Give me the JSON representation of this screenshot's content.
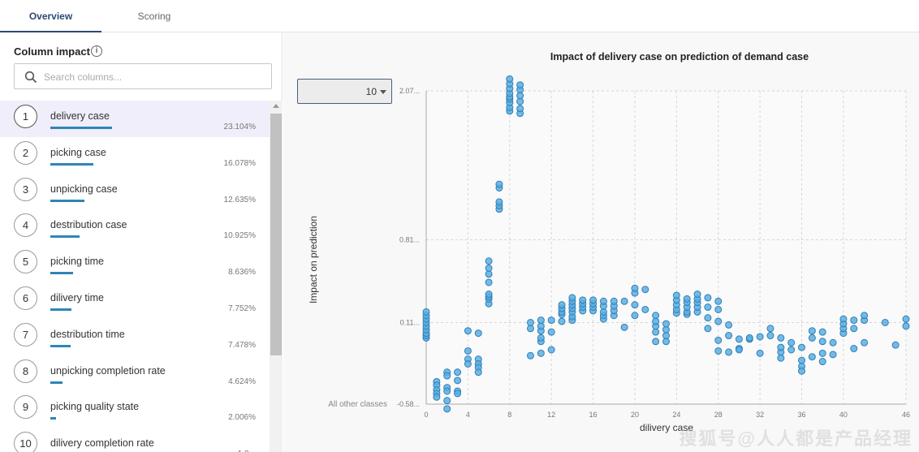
{
  "tabs": [
    {
      "label": "Overview",
      "active": true
    },
    {
      "label": "Scoring",
      "active": false
    }
  ],
  "left": {
    "title": "Column impact",
    "info_icon": "i",
    "search_placeholder": "Search columns..."
  },
  "columns": [
    {
      "rank": "1",
      "name": "delivery case",
      "pct": "23.104%",
      "value": 23.104
    },
    {
      "rank": "2",
      "name": "picking case",
      "pct": "16.078%",
      "value": 16.078
    },
    {
      "rank": "3",
      "name": "unpicking case",
      "pct": "12.635%",
      "value": 12.635
    },
    {
      "rank": "4",
      "name": "destribution case",
      "pct": "10.925%",
      "value": 10.925
    },
    {
      "rank": "5",
      "name": "picking time",
      "pct": "8.636%",
      "value": 8.636
    },
    {
      "rank": "6",
      "name": "dilivery time",
      "pct": "7.752%",
      "value": 7.752
    },
    {
      "rank": "7",
      "name": "destribution time",
      "pct": "7.478%",
      "value": 7.478
    },
    {
      "rank": "8",
      "name": "unpicking completion rate",
      "pct": "4.624%",
      "value": 4.624
    },
    {
      "rank": "9",
      "name": "picking quality state",
      "pct": "2.006%",
      "value": 2.006
    },
    {
      "rank": "10",
      "name": "dilivery completion rate",
      "pct": "1.9...",
      "value": 1.9
    }
  ],
  "colors": {
    "accent": "#2e86b5",
    "point": "#5aaee0",
    "point_stroke": "#2f7fb8"
  },
  "dropdown": {
    "value": "10"
  },
  "watermark": "搜狐号@人人都是产品经理",
  "chart_data": {
    "type": "scatter",
    "title": "Impact of delivery case on prediction of demand case",
    "xlabel": "dilivery case",
    "ylabel": "Impact on prediction",
    "other_label": "All other classes",
    "xlim": [
      0,
      46
    ],
    "ylim": [
      -0.58,
      2.07
    ],
    "xticks": [
      0,
      4,
      8,
      12,
      16,
      20,
      24,
      28,
      32,
      36,
      40,
      46
    ],
    "yticks": [
      {
        "value": 2.07,
        "label": "2.07..."
      },
      {
        "value": 0.81,
        "label": "0.81..."
      },
      {
        "value": 0.11,
        "label": "0.11..."
      },
      {
        "value": -0.58,
        "label": "-0.58..."
      }
    ],
    "points": [
      [
        0,
        -0.02
      ],
      [
        0,
        0.0
      ],
      [
        0,
        0.02
      ],
      [
        0,
        0.05
      ],
      [
        0,
        0.08
      ],
      [
        0,
        0.11
      ],
      [
        0,
        0.14
      ],
      [
        0,
        0.17
      ],
      [
        0,
        0.2
      ],
      [
        1,
        -0.39
      ],
      [
        1,
        -0.42
      ],
      [
        1,
        -0.46
      ],
      [
        1,
        -0.49
      ],
      [
        1,
        -0.52
      ],
      [
        2,
        -0.31
      ],
      [
        2,
        -0.34
      ],
      [
        2,
        -0.44
      ],
      [
        2,
        -0.47
      ],
      [
        2,
        -0.55
      ],
      [
        2,
        -0.62
      ],
      [
        3,
        -0.31
      ],
      [
        3,
        -0.38
      ],
      [
        3,
        -0.47
      ],
      [
        3,
        -0.49
      ],
      [
        4,
        -0.13
      ],
      [
        4,
        -0.2
      ],
      [
        4,
        -0.24
      ],
      [
        4,
        0.04
      ],
      [
        5,
        -0.2
      ],
      [
        5,
        -0.24
      ],
      [
        5,
        -0.27
      ],
      [
        5,
        -0.31
      ],
      [
        5,
        0.02
      ],
      [
        6,
        0.27
      ],
      [
        6,
        0.31
      ],
      [
        6,
        0.33
      ],
      [
        6,
        0.35
      ],
      [
        6,
        0.45
      ],
      [
        6,
        0.52
      ],
      [
        6,
        0.57
      ],
      [
        6,
        0.63
      ],
      [
        7,
        1.07
      ],
      [
        7,
        1.1
      ],
      [
        7,
        1.13
      ],
      [
        7,
        1.25
      ],
      [
        7,
        1.28
      ],
      [
        8,
        1.9
      ],
      [
        8,
        1.93
      ],
      [
        8,
        1.97
      ],
      [
        8,
        2.0
      ],
      [
        8,
        2.02
      ],
      [
        8,
        2.05
      ],
      [
        8,
        2.09
      ],
      [
        8,
        2.13
      ],
      [
        8,
        2.17
      ],
      [
        9,
        1.88
      ],
      [
        9,
        1.92
      ],
      [
        9,
        1.98
      ],
      [
        9,
        2.03
      ],
      [
        9,
        2.08
      ],
      [
        9,
        2.12
      ],
      [
        10,
        -0.17
      ],
      [
        10,
        0.06
      ],
      [
        10,
        0.11
      ],
      [
        11,
        -0.15
      ],
      [
        11,
        -0.05
      ],
      [
        11,
        -0.02
      ],
      [
        11,
        0.04
      ],
      [
        11,
        0.08
      ],
      [
        11,
        0.13
      ],
      [
        12,
        0.13
      ],
      [
        12,
        0.03
      ],
      [
        12,
        -0.12
      ],
      [
        13,
        0.12
      ],
      [
        13,
        0.18
      ],
      [
        13,
        0.2
      ],
      [
        13,
        0.23
      ],
      [
        13,
        0.26
      ],
      [
        14,
        0.13
      ],
      [
        14,
        0.16
      ],
      [
        14,
        0.2
      ],
      [
        14,
        0.23
      ],
      [
        14,
        0.26
      ],
      [
        14,
        0.29
      ],
      [
        14,
        0.32
      ],
      [
        15,
        0.21
      ],
      [
        15,
        0.24
      ],
      [
        15,
        0.27
      ],
      [
        15,
        0.3
      ],
      [
        16,
        0.21
      ],
      [
        16,
        0.24
      ],
      [
        16,
        0.27
      ],
      [
        16,
        0.3
      ],
      [
        17,
        0.14
      ],
      [
        17,
        0.17
      ],
      [
        17,
        0.2
      ],
      [
        17,
        0.25
      ],
      [
        17,
        0.29
      ],
      [
        18,
        0.17
      ],
      [
        18,
        0.21
      ],
      [
        18,
        0.25
      ],
      [
        18,
        0.29
      ],
      [
        19,
        0.07
      ],
      [
        19,
        0.29
      ],
      [
        20,
        0.17
      ],
      [
        20,
        0.26
      ],
      [
        20,
        0.36
      ],
      [
        20,
        0.4
      ],
      [
        21,
        0.22
      ],
      [
        21,
        0.39
      ],
      [
        22,
        -0.05
      ],
      [
        22,
        0.03
      ],
      [
        22,
        0.08
      ],
      [
        22,
        0.12
      ],
      [
        22,
        0.17
      ],
      [
        23,
        -0.05
      ],
      [
        23,
        0.0
      ],
      [
        23,
        0.05
      ],
      [
        23,
        0.1
      ],
      [
        24,
        0.19
      ],
      [
        24,
        0.22
      ],
      [
        24,
        0.26
      ],
      [
        24,
        0.3
      ],
      [
        24,
        0.34
      ],
      [
        25,
        0.18
      ],
      [
        25,
        0.2
      ],
      [
        25,
        0.24
      ],
      [
        25,
        0.28
      ],
      [
        25,
        0.31
      ],
      [
        26,
        0.2
      ],
      [
        26,
        0.24
      ],
      [
        26,
        0.28
      ],
      [
        26,
        0.31
      ],
      [
        26,
        0.35
      ],
      [
        27,
        0.06
      ],
      [
        27,
        0.15
      ],
      [
        27,
        0.24
      ],
      [
        27,
        0.32
      ],
      [
        28,
        -0.13
      ],
      [
        28,
        -0.04
      ],
      [
        28,
        0.12
      ],
      [
        28,
        0.22
      ],
      [
        28,
        0.29
      ],
      [
        29,
        0.09
      ],
      [
        29,
        0.0
      ],
      [
        29,
        -0.14
      ],
      [
        30,
        -0.03
      ],
      [
        30,
        -0.11
      ],
      [
        30,
        -0.12
      ],
      [
        31,
        -0.03
      ],
      [
        31,
        -0.02
      ],
      [
        32,
        -0.01
      ],
      [
        32,
        -0.15
      ],
      [
        33,
        0.0
      ],
      [
        33,
        0.06
      ],
      [
        34,
        -0.14
      ],
      [
        34,
        -0.1
      ],
      [
        34,
        -0.02
      ],
      [
        34,
        -0.19
      ],
      [
        35,
        -0.12
      ],
      [
        35,
        -0.06
      ],
      [
        36,
        -0.21
      ],
      [
        36,
        -0.26
      ],
      [
        36,
        -0.3
      ],
      [
        36,
        -0.1
      ],
      [
        37,
        -0.18
      ],
      [
        37,
        -0.02
      ],
      [
        37,
        0.04
      ],
      [
        38,
        -0.22
      ],
      [
        38,
        -0.15
      ],
      [
        38,
        0.03
      ],
      [
        38,
        -0.05
      ],
      [
        39,
        -0.16
      ],
      [
        39,
        -0.06
      ],
      [
        40,
        0.02
      ],
      [
        40,
        0.06
      ],
      [
        40,
        0.1
      ],
      [
        40,
        0.14
      ],
      [
        41,
        -0.11
      ],
      [
        41,
        0.06
      ],
      [
        41,
        0.13
      ],
      [
        42,
        -0.06
      ],
      [
        42,
        0.13
      ],
      [
        42,
        0.17
      ],
      [
        44,
        0.11
      ],
      [
        45,
        -0.08
      ],
      [
        46,
        0.08
      ],
      [
        46,
        0.14
      ]
    ],
    "grid": true
  }
}
